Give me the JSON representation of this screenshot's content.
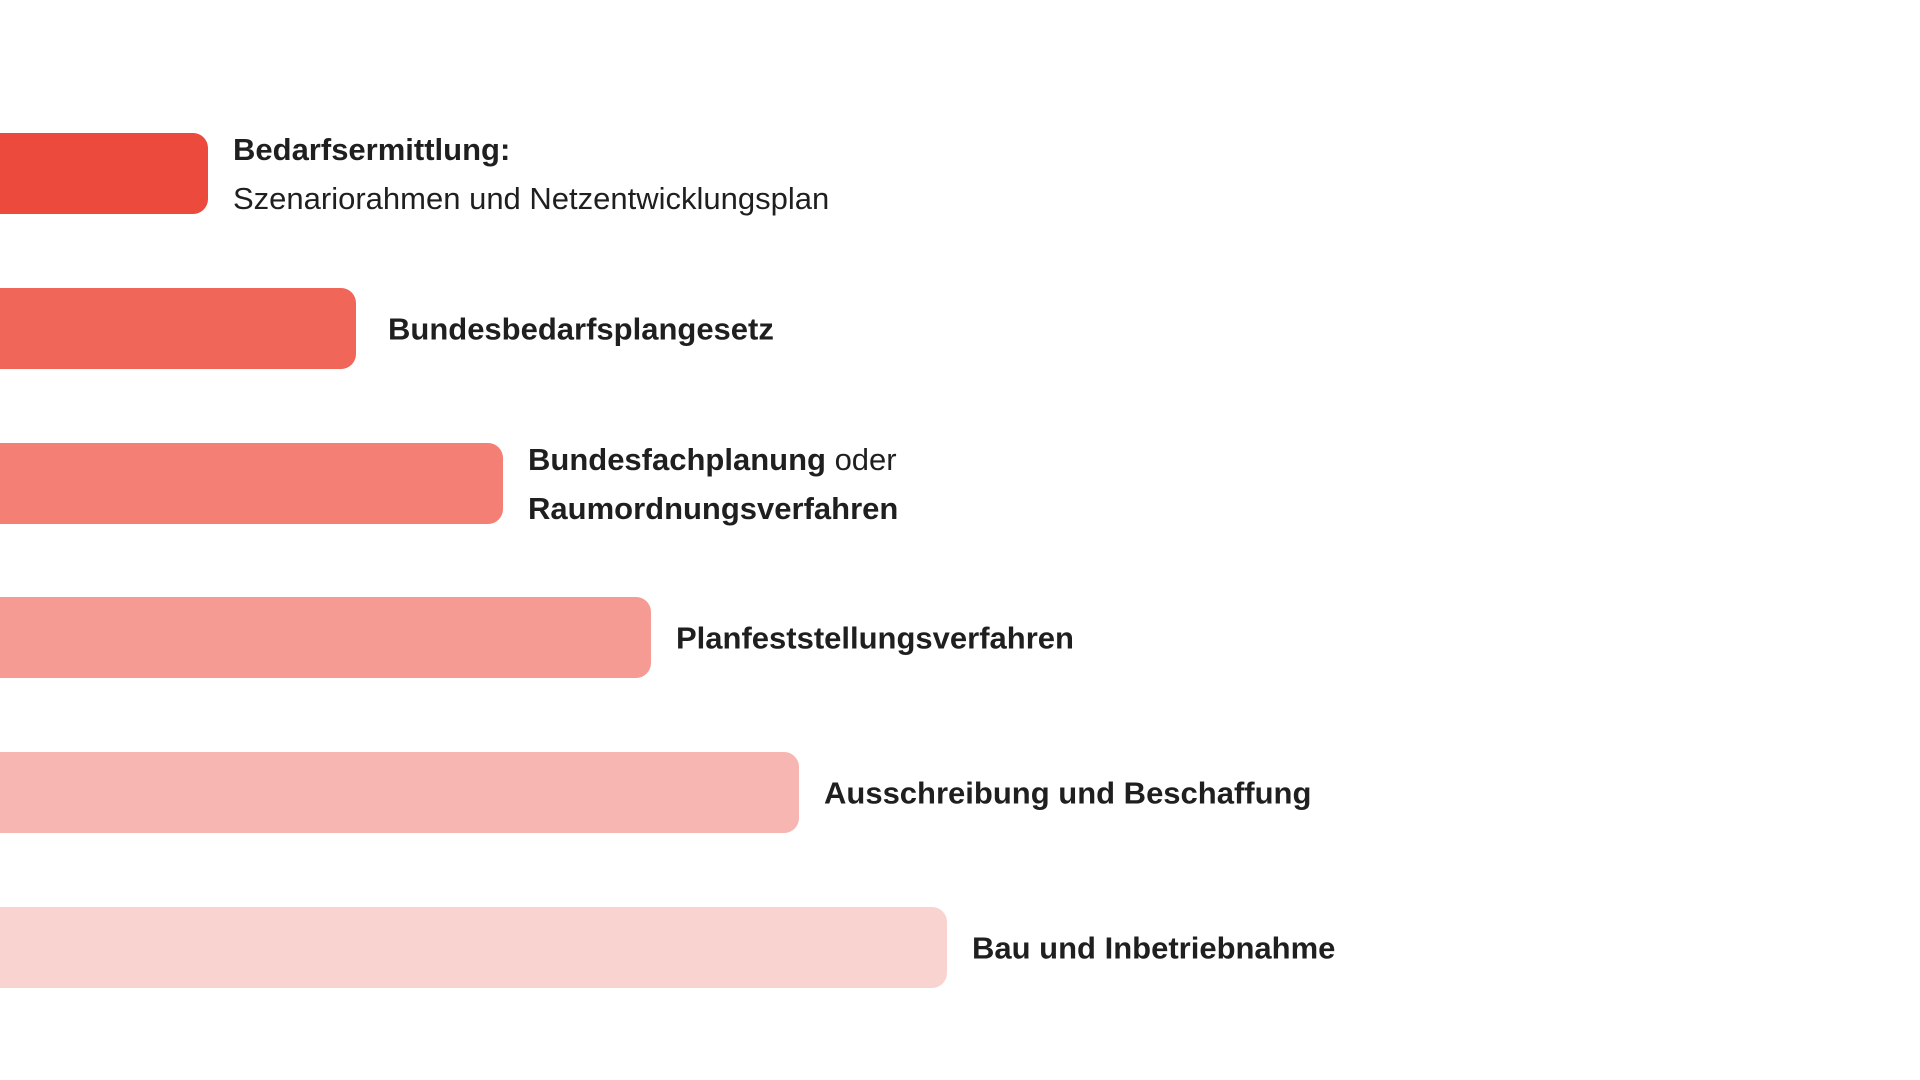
{
  "steps": [
    {
      "bold": "Bedarfsermittlung:",
      "normal": "Szenariorahmen und Netzentwicklungsplan",
      "color": "#ec4a3c"
    },
    {
      "bold": "Bundesbedarfsplangesetz",
      "color": "#f06658"
    },
    {
      "bold": "Bundesfachplanung",
      "normal": " oder",
      "bold2": "Raumordnungsverfahren",
      "color": "#f37f75"
    },
    {
      "bold": "Planfeststellungsverfahren",
      "color": "#f69b93"
    },
    {
      "bold": "Ausschreibung und Beschaffung",
      "color": "#f7b6b1"
    },
    {
      "bold": "Bau und Inbetriebnahme",
      "color": "#f9d3cf"
    }
  ]
}
